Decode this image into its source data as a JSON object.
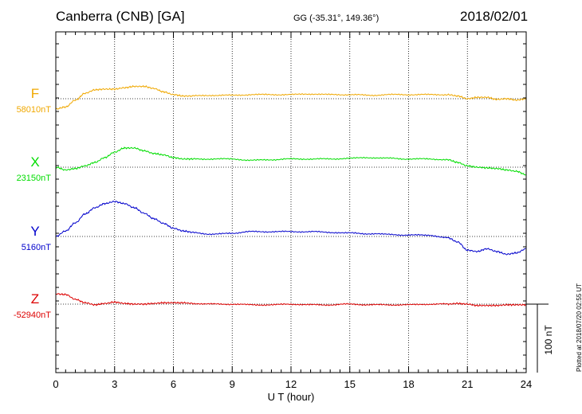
{
  "header": {
    "station": "Canberra (CNB)  [GA]",
    "coords": "GG (-35.31°, 149.36°)",
    "date": "2018/02/01"
  },
  "footer": {
    "plotted": "Plotted at 2018/07/20 02:55 UT"
  },
  "colors": {
    "F": "#f0a800",
    "X": "#00dd00",
    "Y": "#0000cc",
    "Z": "#dd0000",
    "axis": "#000000"
  },
  "chart_data": {
    "type": "line",
    "xlabel": "U T (hour)",
    "ylabel": "",
    "xlim": [
      0,
      24
    ],
    "x_ticks": [
      "0",
      "3",
      "6",
      "9",
      "12",
      "15",
      "18",
      "21",
      "24"
    ],
    "scale_bar": {
      "label": "100 nT",
      "value_nT": 100
    },
    "grid": "dotted vertical every 3 h",
    "series": [
      {
        "name": "F",
        "baseline_label": "58010nT",
        "x": [
          0,
          0.5,
          1,
          1.5,
          2,
          2.5,
          3,
          3.5,
          4,
          4.5,
          5,
          5.5,
          6,
          6.5,
          7,
          8,
          9,
          10,
          11,
          12,
          13,
          14,
          15,
          16,
          17,
          18,
          19,
          20,
          20.5,
          21,
          21.5,
          22,
          22.5,
          23,
          23.5,
          24
        ],
        "values": [
          -15,
          -12,
          -2,
          8,
          13,
          14,
          14,
          16,
          18,
          18,
          15,
          10,
          6,
          4,
          4,
          5,
          5,
          6,
          6,
          6,
          7,
          6,
          6,
          5,
          6,
          6,
          6,
          6,
          4,
          0,
          2,
          2,
          -1,
          0,
          -2,
          0
        ]
      },
      {
        "name": "X",
        "baseline_label": "23150nT",
        "x": [
          0,
          0.5,
          1,
          1.5,
          2,
          2.5,
          3,
          3.5,
          4,
          4.5,
          5,
          5.5,
          6,
          6.5,
          7,
          8,
          9,
          10,
          11,
          12,
          13,
          14,
          15,
          16,
          17,
          18,
          19,
          20,
          20.5,
          21,
          21.5,
          22,
          22.5,
          23,
          23.5,
          24
        ],
        "values": [
          0,
          -4,
          -2,
          2,
          7,
          14,
          22,
          28,
          28,
          24,
          20,
          18,
          14,
          12,
          12,
          12,
          12,
          10,
          11,
          12,
          12,
          12,
          13,
          14,
          13,
          12,
          12,
          11,
          7,
          2,
          0,
          -1,
          -2,
          -4,
          -6,
          -11
        ]
      },
      {
        "name": "Y",
        "baseline_label": "5160nT",
        "x": [
          0,
          0.5,
          1,
          1.5,
          2,
          2.5,
          3,
          3.5,
          4,
          4.5,
          5,
          5.5,
          6,
          6.5,
          7,
          8,
          9,
          10,
          11,
          12,
          13,
          14,
          15,
          16,
          17,
          18,
          19,
          20,
          20.5,
          21,
          21.5,
          22,
          22.5,
          23,
          23.5,
          24
        ],
        "values": [
          0,
          8,
          20,
          33,
          42,
          48,
          51,
          48,
          42,
          34,
          26,
          19,
          12,
          8,
          6,
          3,
          5,
          7,
          7,
          7,
          7,
          6,
          5,
          4,
          3,
          2,
          2,
          -2,
          -8,
          -20,
          -22,
          -18,
          -22,
          -26,
          -24,
          -18
        ]
      },
      {
        "name": "Z",
        "baseline_label": "-52940nT",
        "x": [
          0,
          0.5,
          1,
          1.5,
          2,
          2.5,
          3,
          3.5,
          4,
          4.5,
          5,
          5.5,
          6,
          6.5,
          7,
          8,
          9,
          10,
          11,
          12,
          13,
          14,
          15,
          16,
          17,
          18,
          19,
          20,
          20.5,
          21,
          21.5,
          22,
          22.5,
          23,
          23.5,
          24
        ],
        "values": [
          15,
          14,
          7,
          2,
          -1,
          1,
          3,
          1,
          0,
          0,
          1,
          2,
          2,
          2,
          1,
          0,
          0,
          -1,
          -1,
          0,
          -1,
          -1,
          0,
          -1,
          -1,
          -1,
          0,
          0,
          1,
          0,
          -2,
          -2,
          -2,
          -1,
          -1,
          -1
        ]
      }
    ]
  }
}
